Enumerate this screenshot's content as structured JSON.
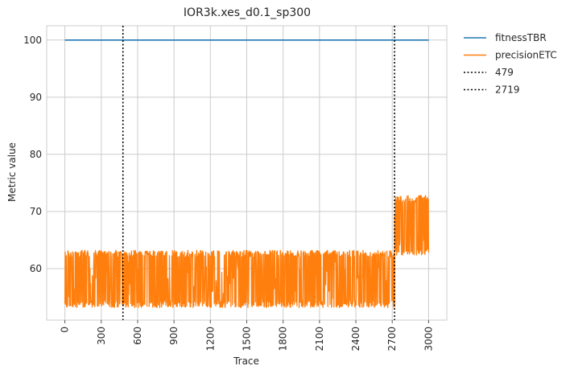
{
  "chart_data": {
    "type": "line",
    "title": "IOR3k.xes_d0.1_sp300",
    "xlabel": "Trace",
    "ylabel": "Metric value",
    "xlim": [
      -150,
      3150
    ],
    "ylim": [
      51.0,
      102.5
    ],
    "x_ticks": [
      0,
      300,
      600,
      900,
      1200,
      1500,
      1800,
      2100,
      2400,
      2700,
      3000
    ],
    "y_ticks": [
      60,
      70,
      80,
      90,
      100
    ],
    "grid": true,
    "legend_position": "outside-top-right",
    "series": [
      {
        "name": "fitnessTBR",
        "color": "#1f77b4",
        "x": [
          0,
          3000
        ],
        "values": [
          100,
          100
        ]
      },
      {
        "name": "precisionETC",
        "color": "#ff7f0e",
        "segments": [
          {
            "x_start": 0,
            "x_end": 2719,
            "min": 53.2,
            "max": 63.2
          },
          {
            "x_start": 2719,
            "x_end": 3000,
            "min": 62.3,
            "max": 72.8
          }
        ]
      }
    ],
    "vlines": [
      {
        "name": "479",
        "x": 479,
        "color": "#000000",
        "style": "dotted"
      },
      {
        "name": "2719",
        "x": 2719,
        "color": "#000000",
        "style": "dotted"
      }
    ]
  }
}
